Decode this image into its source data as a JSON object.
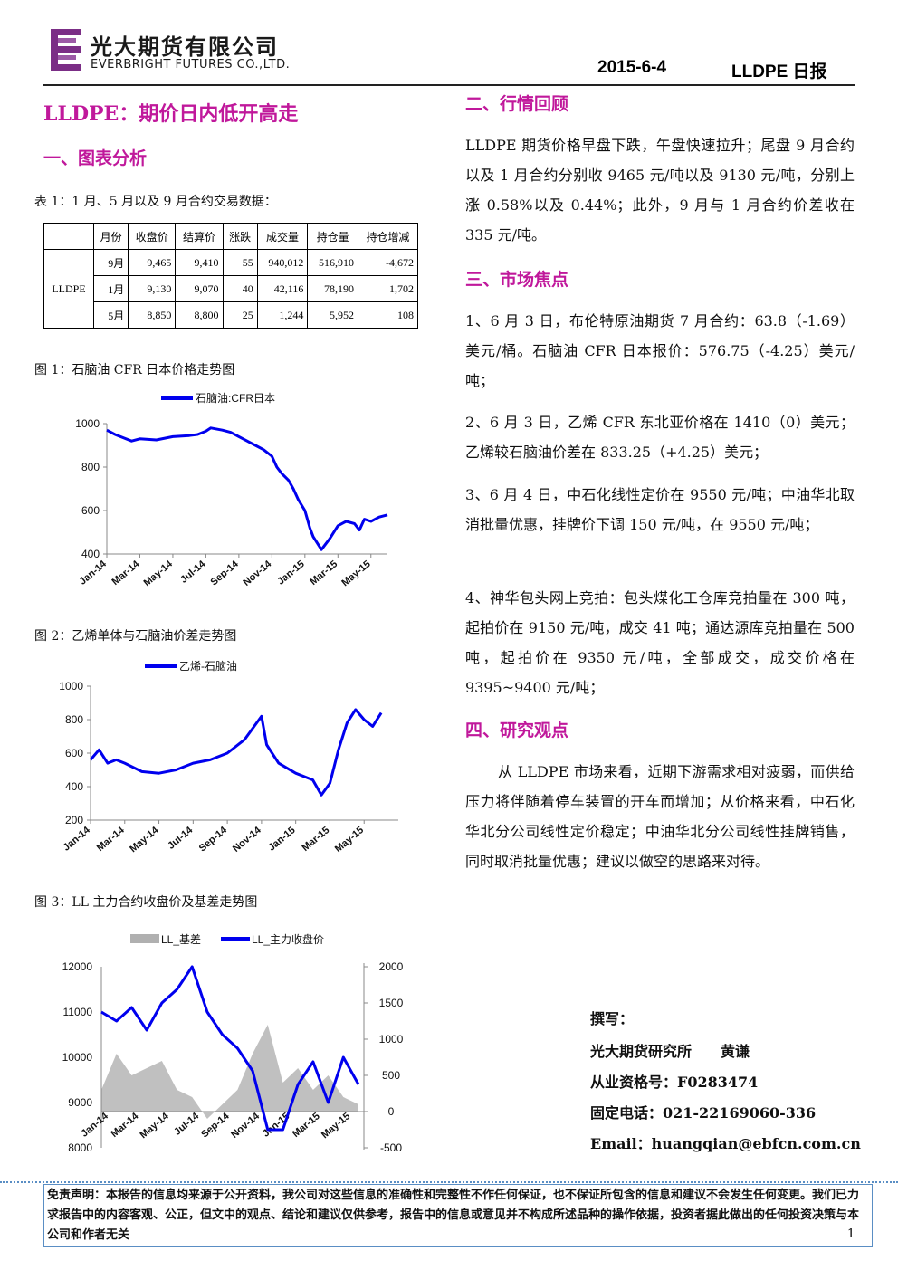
{
  "header": {
    "company_cn": "光大期货有限公司",
    "company_en": "EVERBRIGHT FUTURES CO.,LTD.",
    "date": "2015-6-4",
    "product": "LLDPE 日报",
    "logo_color": "#7b2e86"
  },
  "title": "LLDPE：期价日内低开高走",
  "section1": {
    "heading": "一、图表分析",
    "table_caption": "表 1：1 月、5 月以及 9 月合约交易数据：",
    "table": {
      "columns": [
        "",
        "月份",
        "收盘价",
        "结算价",
        "涨跌",
        "成交量",
        "持仓量",
        "持仓增减"
      ],
      "group_label": "LLDPE",
      "rows": [
        [
          "9月",
          "9,465",
          "9,410",
          "55",
          "940,012",
          "516,910",
          "-4,672"
        ],
        [
          "1月",
          "9,130",
          "9,070",
          "40",
          "42,116",
          "78,190",
          "1,702"
        ],
        [
          "5月",
          "8,850",
          "8,800",
          "25",
          "1,244",
          "5,952",
          "108"
        ]
      ]
    }
  },
  "fig1": {
    "caption": "图 1：石脑油 CFR 日本价格走势图",
    "chart_data": {
      "type": "line",
      "series": [
        {
          "name": "石脑油:CFR日本",
          "color": "#0000ee"
        }
      ],
      "x_ticks": [
        "Jan-14",
        "Mar-14",
        "May-14",
        "Jul-14",
        "Sep-14",
        "Nov-14",
        "Jan-15",
        "Mar-15",
        "May-15"
      ],
      "y_ticks": [
        "1000",
        "800",
        "600",
        "400"
      ],
      "ylim": [
        400,
        1000
      ],
      "x": [
        0,
        0.5,
        1,
        1.5,
        2,
        3,
        4,
        5,
        5.5,
        6,
        6.3,
        7,
        7.5,
        8,
        8.5,
        9,
        9.5,
        10,
        10.3,
        10.6,
        11,
        11.3,
        11.6,
        12,
        12.3,
        12.5,
        13,
        13.5,
        14,
        14.5,
        15,
        15.3,
        15.6,
        16,
        16.5,
        17
      ],
      "values": [
        970,
        950,
        935,
        920,
        930,
        925,
        940,
        945,
        950,
        965,
        980,
        970,
        960,
        940,
        920,
        900,
        880,
        850,
        800,
        770,
        740,
        700,
        650,
        600,
        520,
        480,
        420,
        470,
        530,
        550,
        540,
        510,
        560,
        550,
        570,
        580
      ]
    }
  },
  "fig2": {
    "caption": "图 2：乙烯单体与石脑油价差走势图",
    "chart_data": {
      "type": "line",
      "series": [
        {
          "name": "乙烯-石脑油",
          "color": "#0000ee"
        }
      ],
      "x_ticks": [
        "Jan-14",
        "Mar-14",
        "May-14",
        "Jul-14",
        "Sep-14",
        "Nov-14",
        "Jan-15",
        "Mar-15",
        "May-15"
      ],
      "y_ticks": [
        "1000",
        "800",
        "600",
        "400",
        "200"
      ],
      "ylim": [
        200,
        1000
      ],
      "x": [
        0,
        0.5,
        1,
        1.5,
        2,
        3,
        4,
        5,
        6,
        7,
        8,
        9,
        10,
        10.3,
        11,
        12,
        13,
        13.5,
        14,
        14.5,
        15,
        15.5,
        16,
        16.5,
        17
      ],
      "values": [
        560,
        620,
        540,
        560,
        540,
        490,
        480,
        500,
        540,
        560,
        600,
        680,
        820,
        650,
        540,
        480,
        440,
        350,
        420,
        620,
        780,
        860,
        800,
        760,
        840
      ]
    }
  },
  "fig3": {
    "caption": "图 3：LL 主力合约收盘价及基差走势图",
    "chart_data": {
      "type": "line",
      "series": [
        {
          "name": "LL_基差",
          "color": "#b0b0b0",
          "kind": "area",
          "axis": "right"
        },
        {
          "name": "LL_主力收盘价",
          "color": "#0000ee",
          "kind": "line",
          "axis": "left"
        }
      ],
      "x_ticks": [
        "Jan-14",
        "Mar-14",
        "May-14",
        "Jul-14",
        "Sep-14",
        "Nov-14",
        "Jan-15",
        "Mar-15",
        "May-15"
      ],
      "y_ticks_left": [
        "12000",
        "11000",
        "10000",
        "9000",
        "8000"
      ],
      "y_ticks_right": [
        "2000",
        "1500",
        "1000",
        "500",
        "0",
        "-500"
      ],
      "ylim_left": [
        8000,
        12000
      ],
      "ylim_right": [
        -500,
        2000
      ],
      "x": [
        0,
        1,
        2,
        3,
        4,
        5,
        6,
        7,
        8,
        9,
        10,
        11,
        12,
        13,
        14,
        15,
        16,
        17
      ],
      "close": [
        11000,
        10800,
        11100,
        10600,
        11200,
        11500,
        12000,
        11000,
        10500,
        10200,
        9700,
        8400,
        8400,
        9400,
        9900,
        9000,
        10000,
        9400
      ],
      "basis": [
        300,
        800,
        500,
        600,
        700,
        300,
        200,
        -100,
        100,
        300,
        800,
        1200,
        400,
        600,
        300,
        500,
        200,
        100
      ]
    }
  },
  "section2": {
    "heading": "二、行情回顾",
    "text": "LLDPE 期货价格早盘下跌，午盘快速拉升；尾盘 9 月合约以及 1 月合约分别收 9465 元/吨以及 9130 元/吨，分别上涨 0.58%以及 0.44%；此外，9 月与 1 月合约价差收在 335 元/吨。"
  },
  "section3": {
    "heading": "三、市场焦点",
    "items": [
      "1、6 月 3 日，布伦特原油期货 7 月合约：63.8（-1.69）美元/桶。石脑油 CFR 日本报价：576.75（-4.25）美元/吨；",
      "2、6 月 3 日，乙烯 CFR 东北亚价格在 1410（0）美元；乙烯较石脑油价差在 833.25（+4.25）美元；",
      "3、6 月 4 日，中石化线性定价在 9550 元/吨；中油华北取消批量优惠，挂牌价下调 150 元/吨，在 9550 元/吨；",
      "4、神华包头网上竞拍：包头煤化工仓库竞拍量在 300 吨，起拍价在 9150 元/吨，成交 41 吨；通达源库竞拍量在 500 吨，起拍价在 9350 元/吨，全部成交，成交价格在 9395~9400 元/吨；"
    ]
  },
  "section4": {
    "heading": "四、研究观点",
    "text": "从 LLDPE 市场来看，近期下游需求相对疲弱，而供给压力将伴随着停车装置的开车而增加；从价格来看，中石化华北分公司线性定价稳定；中油华北分公司线性挂牌销售，同时取消批量优惠；建议以做空的思路来对待。"
  },
  "author": {
    "label": "撰写：",
    "org_name": "光大期货研究所　　黄谦",
    "license": "从业资格号：F0283474",
    "phone": "固定电话：021-22169060-336",
    "email": "Email：huangqian@ebfcn.com.cn"
  },
  "disclaimer": "免责声明：本报告的信息均来源于公开资料，我公司对这些信息的准确性和完整性不作任何保证，也不保证所包含的信息和建议不会发生任何变更。我们已力求报告中的内容客观、公正，但文中的观点、结论和建议仅供参考，报告中的信息或意见并不构成所述品种的操作依据，投资者据此做出的任何投资决策与本公司和作者无关",
  "page_number": "1"
}
